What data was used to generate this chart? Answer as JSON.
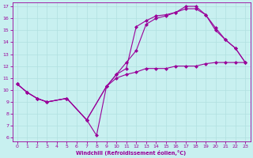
{
  "xlabel": "Windchill (Refroidissement éolien,°C)",
  "bg_color": "#c8f0f0",
  "line_color": "#990099",
  "xlim": [
    -0.5,
    23.5
  ],
  "ylim": [
    5.7,
    17.3
  ],
  "xticks": [
    0,
    1,
    2,
    3,
    4,
    5,
    6,
    7,
    8,
    9,
    10,
    11,
    12,
    13,
    14,
    15,
    16,
    17,
    18,
    19,
    20,
    21,
    22,
    23
  ],
  "yticks": [
    6,
    7,
    8,
    9,
    10,
    11,
    12,
    13,
    14,
    15,
    16,
    17
  ],
  "line1_x": [
    0,
    1,
    2,
    3,
    5,
    7,
    8,
    9,
    10,
    11,
    12,
    13,
    14,
    15,
    16,
    17,
    18,
    19,
    20,
    21,
    22,
    23
  ],
  "line1_y": [
    10.5,
    9.8,
    9.3,
    9.0,
    9.3,
    7.5,
    6.2,
    10.3,
    11.0,
    11.3,
    11.5,
    11.8,
    11.8,
    11.8,
    12.0,
    12.0,
    12.0,
    12.2,
    12.3,
    12.3,
    12.3,
    12.3
  ],
  "line2_x": [
    0,
    1,
    2,
    3,
    5,
    7,
    9,
    10,
    11,
    12,
    13,
    14,
    15,
    16,
    17,
    18,
    19,
    20,
    21,
    22,
    23
  ],
  "line2_y": [
    10.5,
    9.8,
    9.3,
    9.0,
    9.3,
    7.5,
    10.3,
    11.3,
    12.3,
    13.3,
    15.5,
    16.0,
    16.2,
    16.5,
    17.0,
    17.0,
    16.3,
    15.0,
    14.2,
    13.5,
    12.3
  ],
  "line3_x": [
    0,
    1,
    2,
    3,
    5,
    7,
    9,
    10,
    11,
    12,
    13,
    14,
    15,
    16,
    17,
    18,
    19,
    20,
    21,
    22,
    23
  ],
  "line3_y": [
    10.5,
    9.8,
    9.3,
    9.0,
    9.3,
    7.5,
    10.3,
    11.3,
    11.8,
    15.3,
    15.8,
    16.2,
    16.3,
    16.5,
    16.8,
    16.8,
    16.3,
    15.2,
    14.2,
    13.5,
    12.3
  ],
  "grid_color": "#b0e0e0",
  "marker": "D",
  "marker_size": 2.5,
  "linewidth": 0.8
}
